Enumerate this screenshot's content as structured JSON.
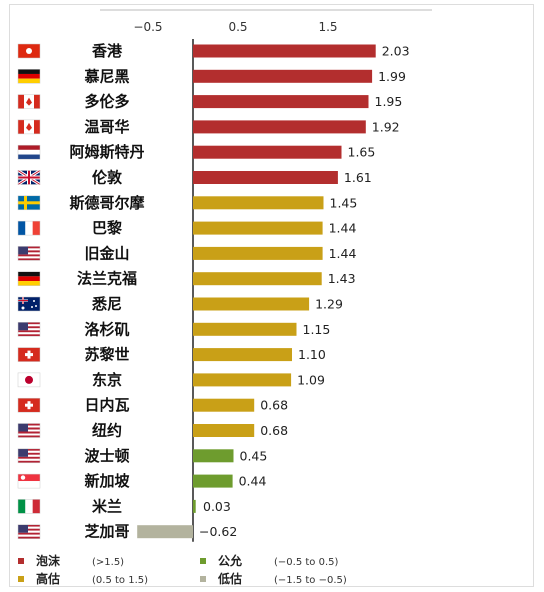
{
  "chart_data": {
    "type": "bar",
    "orientation": "horizontal",
    "title": "",
    "xlabel": "",
    "ylabel": "",
    "xlim": [
      -0.9,
      2.4
    ],
    "ticks": [
      {
        "value": -0.5,
        "label": "−0.5"
      },
      {
        "value": 0.5,
        "label": "0.5"
      },
      {
        "value": 1.5,
        "label": "1.5"
      }
    ],
    "categories": [
      "香港",
      "慕尼黑",
      "多伦多",
      "温哥华",
      "阿姆斯特丹",
      "伦敦",
      "斯德哥尔摩",
      "巴黎",
      "旧金山",
      "法兰克福",
      "悉尼",
      "洛杉矶",
      "苏黎世",
      "东京",
      "日内瓦",
      "纽约",
      "波士顿",
      "新加坡",
      "米兰",
      "芝加哥"
    ],
    "values": [
      2.03,
      1.99,
      1.95,
      1.92,
      1.65,
      1.61,
      1.45,
      1.44,
      1.44,
      1.43,
      1.29,
      1.15,
      1.1,
      1.09,
      0.68,
      0.68,
      0.45,
      0.44,
      0.03,
      -0.62
    ],
    "value_labels": [
      "2.03",
      "1.99",
      "1.95",
      "1.92",
      "1.65",
      "1.61",
      "1.45",
      "1.44",
      "1.44",
      "1.43",
      "1.29",
      "1.15",
      "1.10",
      "1.09",
      "0.68",
      "0.68",
      "0.45",
      "0.44",
      "0.03",
      "−0.62"
    ],
    "flags": [
      "hongkong",
      "germany",
      "canada",
      "canada",
      "netherlands",
      "uk",
      "sweden",
      "france",
      "usa",
      "germany",
      "australia",
      "usa",
      "switzerland",
      "japan",
      "switzerland",
      "usa",
      "usa",
      "singapore",
      "italy",
      "usa"
    ],
    "grid": false,
    "legend_position": "bottom",
    "colors": {
      "bubble": "#b32e2e",
      "over": "#c9a017",
      "fair": "#6e9c2e",
      "under": "#b3b39e"
    }
  },
  "legend": [
    {
      "name": "泡沫",
      "range": "(>1.5)",
      "color": "#b32e2e"
    },
    {
      "name": "公允",
      "range": "(−0.5 to 0.5)",
      "color": "#6e9c2e"
    },
    {
      "name": "高估",
      "range": "(0.5 to 1.5)",
      "color": "#c9a017"
    },
    {
      "name": "低估",
      "range": "(−1.5 to −0.5)",
      "color": "#b3b39e"
    }
  ]
}
